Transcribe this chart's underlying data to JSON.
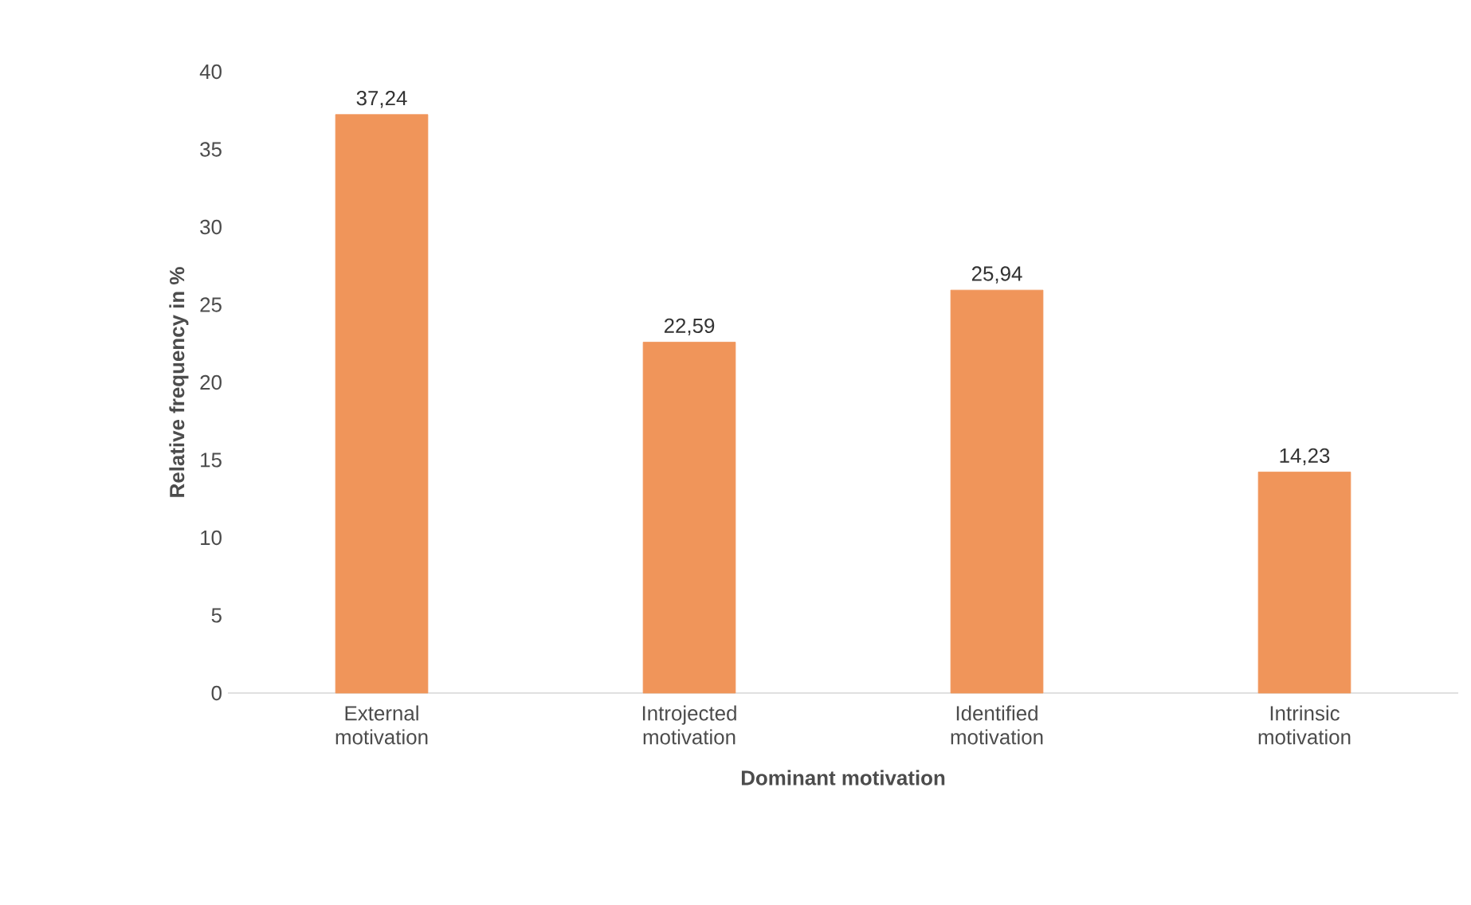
{
  "chart_data": {
    "type": "bar",
    "xlabel": "Dominant motivation",
    "ylabel": "Relative frequency in %",
    "categories": [
      "External motivation",
      "Introjected motivation",
      "Identified motivation",
      "Intrinsic motivation"
    ],
    "values": [
      37.24,
      22.59,
      25.94,
      14.23
    ],
    "value_labels": [
      "37,24",
      "22,59",
      "25,94",
      "14,23"
    ],
    "color": "#f0955a",
    "ylim": [
      0,
      40
    ],
    "yticks": [
      0,
      5,
      10,
      15,
      20,
      25,
      30,
      35,
      40
    ]
  }
}
